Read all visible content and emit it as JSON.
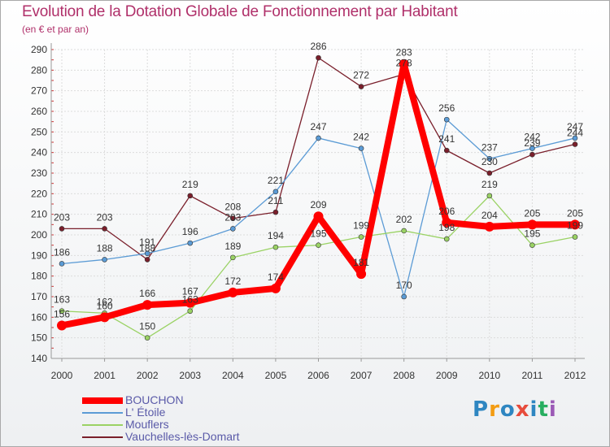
{
  "chart_data": {
    "type": "line",
    "title": "Evolution de la Dotation Globale de Fonctionnement par Habitant",
    "subtitle": "(en € et par an)",
    "xlabel": "",
    "ylabel": "",
    "categories": [
      "2000",
      "2001",
      "2002",
      "2003",
      "2004",
      "2005",
      "2006",
      "2007",
      "2008",
      "2009",
      "2010",
      "2011",
      "2012"
    ],
    "ylim": [
      140,
      290
    ],
    "yticks": [
      140,
      150,
      160,
      170,
      180,
      190,
      200,
      210,
      220,
      230,
      240,
      250,
      260,
      270,
      280,
      290
    ],
    "grid": true,
    "series": [
      {
        "name": "BOUCHON",
        "color": "#ff0000",
        "values": [
          156,
          160,
          166,
          167,
          172,
          174,
          209,
          181,
          283,
          206,
          204,
          205,
          205
        ]
      },
      {
        "name": "L' Étoile",
        "color": "#5b9bd5",
        "values": [
          186,
          188,
          191,
          196,
          203,
          221,
          247,
          242,
          170,
          256,
          237,
          242,
          247
        ]
      },
      {
        "name": "Mouflers",
        "color": "#9ad264",
        "values": [
          163,
          162,
          150,
          163,
          189,
          194,
          195,
          199,
          202,
          198,
          219,
          195,
          199
        ]
      },
      {
        "name": "Vauchelles-lès-Domart",
        "color": "#7a1f2b",
        "values": [
          203,
          203,
          188,
          219,
          208,
          211,
          286,
          272,
          278,
          241,
          230,
          239,
          244
        ]
      }
    ]
  },
  "logo": {
    "letters": [
      "P",
      "r",
      "o",
      "x",
      "i",
      "t",
      "i"
    ],
    "colors": [
      "#2e86c1",
      "#f39c12",
      "#2e86c1",
      "#e74c3c",
      "#2e86c1",
      "#27ae60",
      "#9b59b6"
    ]
  }
}
